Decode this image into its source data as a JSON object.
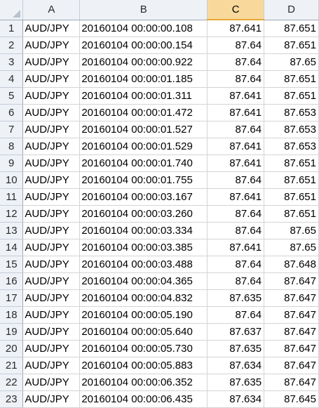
{
  "columns": [
    "A",
    "B",
    "C",
    "D"
  ],
  "selected_column": "C",
  "rows": [
    {
      "n": "1",
      "a": "AUD/JPY",
      "b": "20160104 00:00:00.108",
      "c": "87.641",
      "d": "87.651"
    },
    {
      "n": "2",
      "a": "AUD/JPY",
      "b": "20160104 00:00:00.154",
      "c": "87.64",
      "d": "87.651"
    },
    {
      "n": "3",
      "a": "AUD/JPY",
      "b": "20160104 00:00:00.922",
      "c": "87.64",
      "d": "87.65"
    },
    {
      "n": "4",
      "a": "AUD/JPY",
      "b": "20160104 00:00:01.185",
      "c": "87.64",
      "d": "87.651"
    },
    {
      "n": "5",
      "a": "AUD/JPY",
      "b": "20160104 00:00:01.311",
      "c": "87.641",
      "d": "87.651"
    },
    {
      "n": "6",
      "a": "AUD/JPY",
      "b": "20160104 00:00:01.472",
      "c": "87.641",
      "d": "87.653"
    },
    {
      "n": "7",
      "a": "AUD/JPY",
      "b": "20160104 00:00:01.527",
      "c": "87.64",
      "d": "87.653"
    },
    {
      "n": "8",
      "a": "AUD/JPY",
      "b": "20160104 00:00:01.529",
      "c": "87.641",
      "d": "87.653"
    },
    {
      "n": "9",
      "a": "AUD/JPY",
      "b": "20160104 00:00:01.740",
      "c": "87.641",
      "d": "87.651"
    },
    {
      "n": "10",
      "a": "AUD/JPY",
      "b": "20160104 00:00:01.755",
      "c": "87.64",
      "d": "87.651"
    },
    {
      "n": "11",
      "a": "AUD/JPY",
      "b": "20160104 00:00:03.167",
      "c": "87.641",
      "d": "87.651"
    },
    {
      "n": "12",
      "a": "AUD/JPY",
      "b": "20160104 00:00:03.260",
      "c": "87.64",
      "d": "87.651"
    },
    {
      "n": "13",
      "a": "AUD/JPY",
      "b": "20160104 00:00:03.334",
      "c": "87.64",
      "d": "87.65"
    },
    {
      "n": "14",
      "a": "AUD/JPY",
      "b": "20160104 00:00:03.385",
      "c": "87.641",
      "d": "87.65"
    },
    {
      "n": "15",
      "a": "AUD/JPY",
      "b": "20160104 00:00:03.488",
      "c": "87.64",
      "d": "87.648"
    },
    {
      "n": "16",
      "a": "AUD/JPY",
      "b": "20160104 00:00:04.365",
      "c": "87.64",
      "d": "87.647"
    },
    {
      "n": "17",
      "a": "AUD/JPY",
      "b": "20160104 00:00:04.832",
      "c": "87.635",
      "d": "87.647"
    },
    {
      "n": "18",
      "a": "AUD/JPY",
      "b": "20160104 00:00:05.190",
      "c": "87.64",
      "d": "87.647"
    },
    {
      "n": "19",
      "a": "AUD/JPY",
      "b": "20160104 00:00:05.640",
      "c": "87.637",
      "d": "87.647"
    },
    {
      "n": "20",
      "a": "AUD/JPY",
      "b": "20160104 00:00:05.730",
      "c": "87.635",
      "d": "87.647"
    },
    {
      "n": "21",
      "a": "AUD/JPY",
      "b": "20160104 00:00:05.883",
      "c": "87.634",
      "d": "87.647"
    },
    {
      "n": "22",
      "a": "AUD/JPY",
      "b": "20160104 00:00:06.352",
      "c": "87.635",
      "d": "87.647"
    },
    {
      "n": "23",
      "a": "AUD/JPY",
      "b": "20160104 00:00:06.435",
      "c": "87.634",
      "d": "87.645"
    }
  ]
}
